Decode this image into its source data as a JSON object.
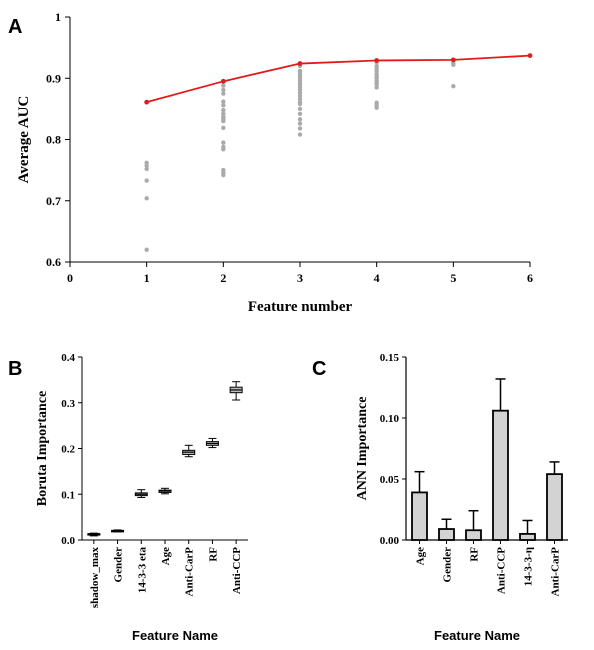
{
  "panels": {
    "a": {
      "letter": "A"
    },
    "b": {
      "letter": "B"
    },
    "c": {
      "letter": "C"
    }
  },
  "chart_data": [
    {
      "id": "A",
      "type": "scatter",
      "title": "",
      "xlabel": "Feature number",
      "ylabel": "Average AUC",
      "xlim": [
        0,
        6
      ],
      "ylim": [
        0.6,
        1.0
      ],
      "xticks": [
        "0",
        "1",
        "2",
        "3",
        "4",
        "5",
        "6"
      ],
      "yticks": [
        "0.6",
        "0.7",
        "0.8",
        "0.9",
        "1"
      ],
      "grid": false,
      "series": [
        {
          "kind": "line",
          "color": "#e31a1c",
          "x": [
            1,
            2,
            3,
            4,
            5,
            6
          ],
          "y": [
            0.861,
            0.895,
            0.924,
            0.929,
            0.93,
            0.937
          ]
        },
        {
          "kind": "scatter",
          "color": "#aaaaaa",
          "x": [
            1,
            1,
            1,
            1,
            1,
            1,
            1,
            2,
            2,
            2,
            2,
            2,
            2,
            2,
            2,
            2,
            2,
            2,
            2,
            2,
            2,
            2,
            2,
            2,
            2,
            2,
            3,
            3,
            3,
            3,
            3,
            3,
            3,
            3,
            3,
            3,
            3,
            3,
            3,
            3,
            3,
            3,
            3,
            3,
            3,
            3,
            3,
            3,
            4,
            4,
            4,
            4,
            4,
            4,
            4,
            4,
            4,
            4,
            4,
            4,
            4,
            4,
            4,
            5,
            5,
            5
          ],
          "y": [
            0.762,
            0.757,
            0.752,
            0.733,
            0.704,
            0.62,
            0.861,
            0.888,
            0.881,
            0.875,
            0.862,
            0.856,
            0.848,
            0.842,
            0.837,
            0.835,
            0.832,
            0.83,
            0.819,
            0.795,
            0.788,
            0.784,
            0.75,
            0.746,
            0.742,
            0.895,
            0.912,
            0.908,
            0.904,
            0.901,
            0.897,
            0.893,
            0.889,
            0.885,
            0.881,
            0.876,
            0.871,
            0.866,
            0.861,
            0.858,
            0.85,
            0.842,
            0.833,
            0.826,
            0.818,
            0.808,
            0.92,
            0.924,
            0.926,
            0.92,
            0.916,
            0.912,
            0.907,
            0.903,
            0.9,
            0.896,
            0.893,
            0.89,
            0.885,
            0.86,
            0.856,
            0.852,
            0.929,
            0.925,
            0.922,
            0.887
          ]
        }
      ]
    },
    {
      "id": "B",
      "type": "box",
      "title": "",
      "xlabel": "Feature Name",
      "ylabel": "Boruta Importance",
      "ylim": [
        0,
        0.4
      ],
      "yticks": [
        "0.0",
        "0.1",
        "0.2",
        "0.3",
        "0.4"
      ],
      "categories": [
        "shadow_max",
        "Gender",
        "14-3-3 eta",
        "Age",
        "Anti-CarP",
        "RF",
        "Anti-CCP"
      ],
      "boxes": [
        {
          "min": 0.009,
          "q1": 0.011,
          "median": 0.012,
          "q3": 0.014,
          "max": 0.015
        },
        {
          "min": 0.018,
          "q1": 0.019,
          "median": 0.02,
          "q3": 0.021,
          "max": 0.022
        },
        {
          "min": 0.093,
          "q1": 0.097,
          "median": 0.1,
          "q3": 0.103,
          "max": 0.11
        },
        {
          "min": 0.101,
          "q1": 0.104,
          "median": 0.107,
          "q3": 0.109,
          "max": 0.113
        },
        {
          "min": 0.182,
          "q1": 0.187,
          "median": 0.192,
          "q3": 0.196,
          "max": 0.207
        },
        {
          "min": 0.202,
          "q1": 0.207,
          "median": 0.211,
          "q3": 0.215,
          "max": 0.222
        },
        {
          "min": 0.306,
          "q1": 0.322,
          "median": 0.328,
          "q3": 0.334,
          "max": 0.346
        }
      ]
    },
    {
      "id": "C",
      "type": "bar",
      "title": "",
      "xlabel": "Feature Name",
      "ylabel": "ANN Importance",
      "ylim": [
        0,
        0.15
      ],
      "yticks": [
        "0.00",
        "0.05",
        "0.10",
        "0.15"
      ],
      "categories": [
        "Age",
        "Gender",
        "RF",
        "Anti-CCP",
        "14-3-3-η",
        "Anti-CarP"
      ],
      "values": [
        0.039,
        0.009,
        0.008,
        0.106,
        0.005,
        0.054
      ],
      "errors": [
        0.017,
        0.008,
        0.016,
        0.026,
        0.011,
        0.01
      ],
      "color": "#d3d3d3"
    }
  ]
}
